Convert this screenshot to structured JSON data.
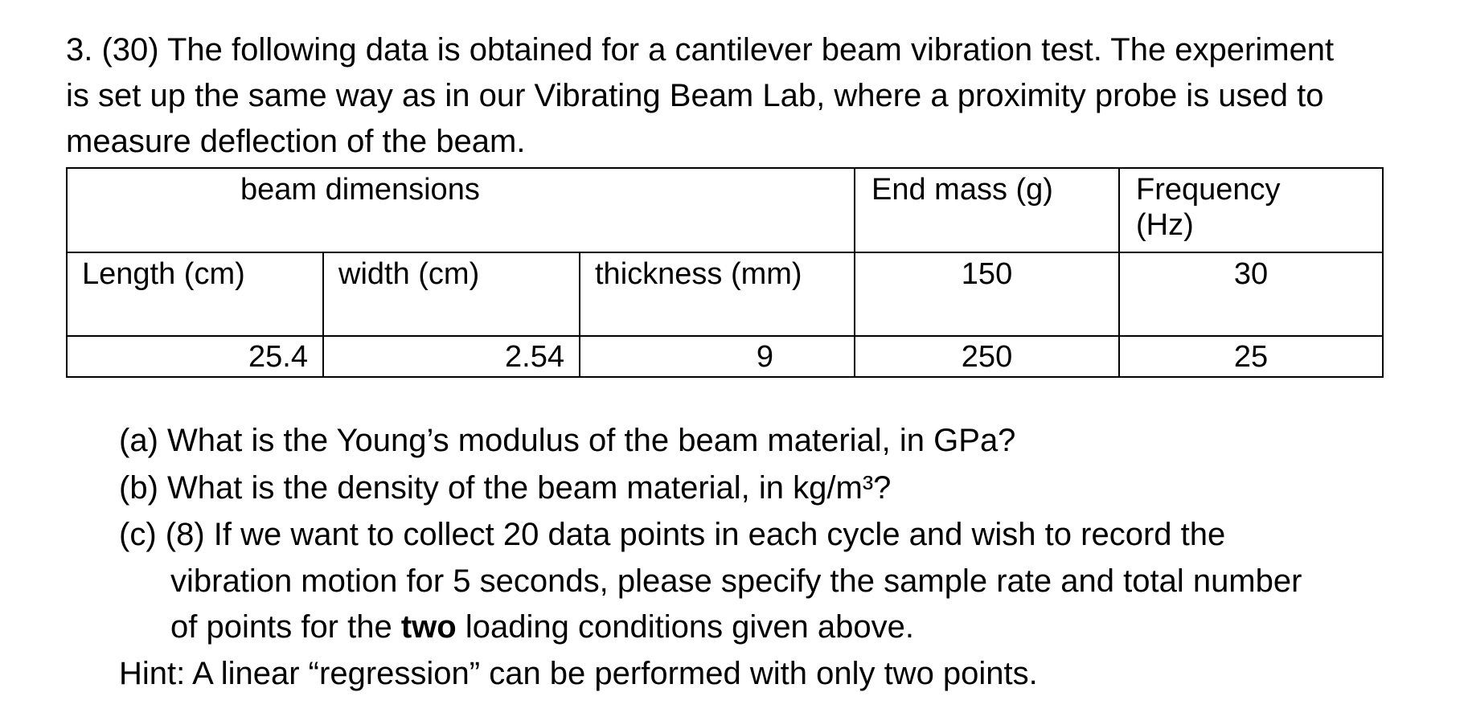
{
  "problem": {
    "intro_lines": [
      "3. (30) The following data is obtained for a cantilever beam vibration test. The experiment",
      "is set up the same way as in our Vibrating Beam Lab, where a proximity probe is used to",
      "measure deflection of the beam."
    ],
    "table": {
      "header": [
        "beam dimensions",
        "End mass (g)",
        "Frequency (Hz)"
      ],
      "subheader": [
        "Length (cm)",
        "width (cm)",
        "thickness (mm)"
      ],
      "rows": [
        {
          "end_mass": 150,
          "frequency": 30
        },
        {
          "length": 25.4,
          "width": 2.54,
          "thickness": 9,
          "end_mass": 250,
          "frequency": 25
        }
      ]
    },
    "questions": {
      "a": "(a) What is the Young’s modulus of the beam material, in GPa?",
      "b": "(b) What is the density of the beam material, in kg/m³?",
      "c_lines": [
        "(c) (8) If we want to collect 20 data points in each cycle and wish to record the",
        "vibration motion for 5 seconds, please specify the sample rate and total number"
      ],
      "c_last": [
        "of points for the ",
        "two",
        " loading conditions given above."
      ],
      "hint": "Hint: A linear “regression” can be performed with only two points."
    }
  }
}
